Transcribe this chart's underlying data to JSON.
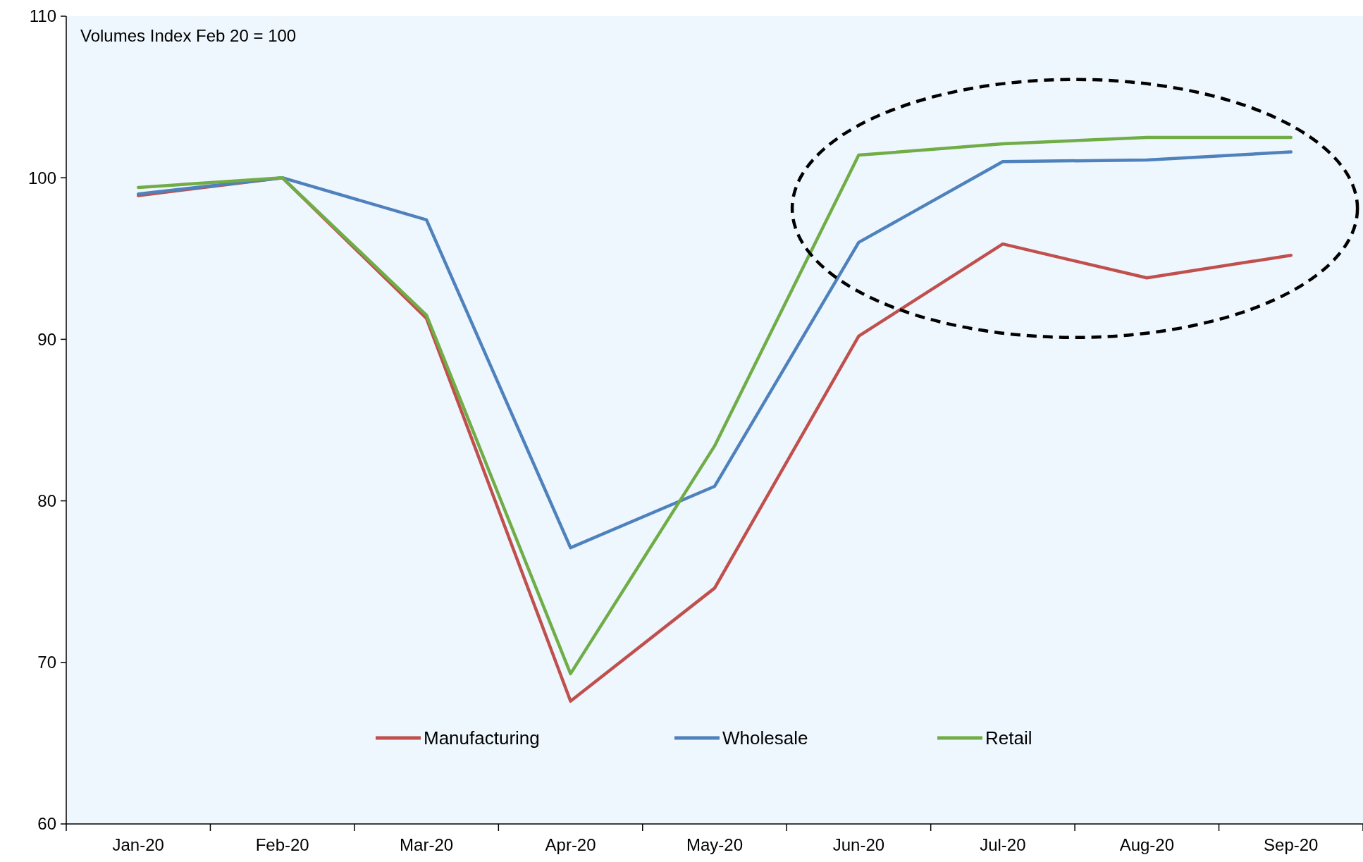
{
  "chart_data": {
    "type": "line",
    "categories": [
      "Jan-20",
      "Feb-20",
      "Mar-20",
      "Apr-20",
      "May-20",
      "Jun-20",
      "Jul-20",
      "Aug-20",
      "Sep-20"
    ],
    "series": [
      {
        "name": "Manufacturing",
        "color": "#c0504d",
        "values": [
          98.9,
          100,
          91.3,
          67.6,
          74.6,
          90.2,
          95.9,
          93.8,
          95.2
        ]
      },
      {
        "name": "Wholesale",
        "color": "#4f81bd",
        "values": [
          99.0,
          100,
          97.4,
          77.1,
          80.9,
          96.0,
          101.0,
          101.1,
          101.6
        ]
      },
      {
        "name": "Retail",
        "color": "#70ad47",
        "values": [
          99.4,
          100,
          91.5,
          69.3,
          83.4,
          101.4,
          102.1,
          102.5,
          102.5
        ]
      }
    ],
    "ylim": [
      60,
      110
    ],
    "yticks": [
      60,
      70,
      80,
      90,
      100,
      110
    ],
    "grid": false,
    "legend": "bottom",
    "marker": "none",
    "line_style": "solid",
    "annotations": [
      "Volumes Index Feb 20 = 100"
    ]
  }
}
